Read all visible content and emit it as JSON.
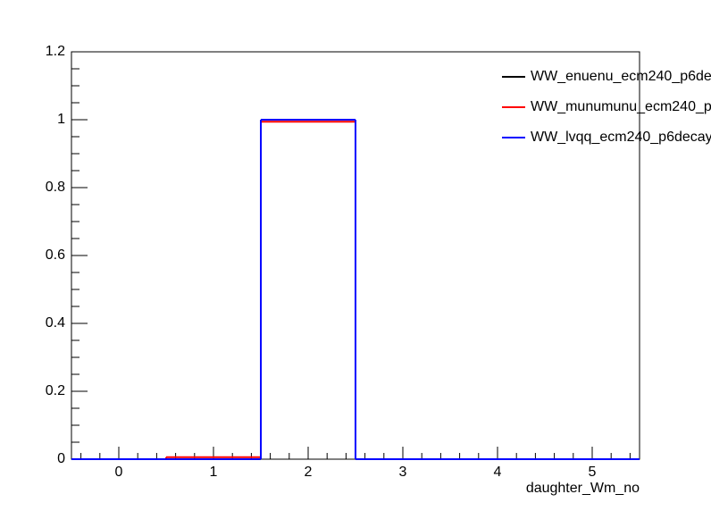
{
  "chart_data": {
    "type": "histogram",
    "x_label": "daughter_Wm_no",
    "bins": [
      -0.5,
      0.5,
      1.5,
      2.5,
      3.5,
      4.5,
      5.5
    ],
    "series": [
      {
        "name": "WW_enuenu_ecm240_p6de",
        "color": "#000000",
        "values": [
          0,
          0,
          1,
          0,
          0,
          0
        ]
      },
      {
        "name": "WW_munumunu_ecm240_p",
        "color": "#ff0000",
        "values": [
          0,
          0.006,
          0.994,
          0,
          0,
          0
        ]
      },
      {
        "name": "WW_lvqq_ecm240_p6decay",
        "color": "#0000ff",
        "values": [
          0,
          0,
          1,
          0,
          0,
          0
        ]
      }
    ],
    "xlim": [
      -0.5,
      5.5
    ],
    "xticks": [
      0,
      1,
      2,
      3,
      4,
      5
    ],
    "ylim": [
      0,
      1.2
    ],
    "yticks": [
      0,
      0.2,
      0.4,
      0.6,
      0.8,
      1,
      1.2
    ]
  }
}
